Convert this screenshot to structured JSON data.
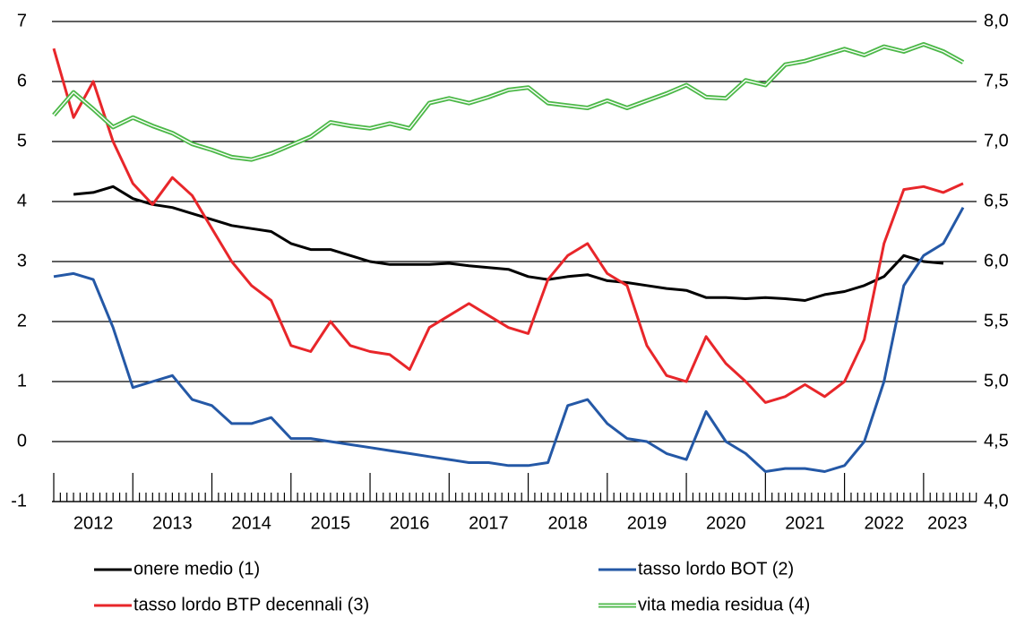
{
  "chart_data": {
    "type": "line",
    "x": [
      2012.0,
      2012.25,
      2012.5,
      2012.75,
      2013.0,
      2013.25,
      2013.5,
      2013.75,
      2014.0,
      2014.25,
      2014.5,
      2014.75,
      2015.0,
      2015.25,
      2015.5,
      2015.75,
      2016.0,
      2016.25,
      2016.5,
      2016.75,
      2017.0,
      2017.25,
      2017.5,
      2017.75,
      2018.0,
      2018.25,
      2018.5,
      2018.75,
      2019.0,
      2019.25,
      2019.5,
      2019.75,
      2020.0,
      2020.25,
      2020.5,
      2020.75,
      2021.0,
      2021.25,
      2021.5,
      2021.75,
      2022.0,
      2022.25,
      2022.5,
      2022.75,
      2023.0,
      2023.25,
      2023.5
    ],
    "xlim": [
      2012.0,
      2023.67
    ],
    "xticks": [
      {
        "value": 2012.5,
        "label": "2012"
      },
      {
        "value": 2013.5,
        "label": "2013"
      },
      {
        "value": 2014.5,
        "label": "2014"
      },
      {
        "value": 2015.5,
        "label": "2015"
      },
      {
        "value": 2016.5,
        "label": "2016"
      },
      {
        "value": 2017.5,
        "label": "2017"
      },
      {
        "value": 2018.5,
        "label": "2018"
      },
      {
        "value": 2019.5,
        "label": "2019"
      },
      {
        "value": 2020.5,
        "label": "2020"
      },
      {
        "value": 2021.5,
        "label": "2021"
      },
      {
        "value": 2022.5,
        "label": "2022"
      },
      {
        "value": 2023.3,
        "label": "2023"
      }
    ],
    "ylim": [
      -1,
      7
    ],
    "yticks": [
      -1,
      0,
      1,
      2,
      3,
      4,
      5,
      6,
      7
    ],
    "y2lim": [
      4,
      8
    ],
    "y2ticks": [
      {
        "value": 4,
        "label": "4,0"
      },
      {
        "value": 4.5,
        "label": "4,5"
      },
      {
        "value": 5,
        "label": "5,0"
      },
      {
        "value": 5.5,
        "label": "5,5"
      },
      {
        "value": 6,
        "label": "6,0"
      },
      {
        "value": 6.5,
        "label": "6,5"
      },
      {
        "value": 7,
        "label": "7,0"
      },
      {
        "value": 7.5,
        "label": "7,5"
      },
      {
        "value": 8,
        "label": "8,0"
      }
    ],
    "grid": true,
    "legend": "bottom",
    "series": [
      {
        "name": "onere medio (1)",
        "color": "#000000",
        "values": [
          null,
          4.12,
          4.15,
          4.25,
          4.05,
          3.95,
          3.9,
          3.8,
          3.7,
          3.6,
          3.55,
          3.5,
          3.3,
          3.2,
          3.2,
          3.1,
          3.0,
          2.95,
          2.95,
          2.95,
          2.97,
          2.93,
          2.9,
          2.87,
          2.75,
          2.7,
          2.75,
          2.78,
          2.68,
          2.65,
          2.6,
          2.55,
          2.52,
          2.4,
          2.4,
          2.38,
          2.4,
          2.38,
          2.35,
          2.45,
          2.5,
          2.6,
          2.75,
          3.1,
          3.0,
          2.97,
          null
        ]
      },
      {
        "name": "tasso lordo BOT (2)",
        "color": "#2458a6",
        "values": [
          2.75,
          2.8,
          2.7,
          1.9,
          0.9,
          1.0,
          1.1,
          0.7,
          0.6,
          0.3,
          0.3,
          0.4,
          0.05,
          0.05,
          0.0,
          -0.05,
          -0.1,
          -0.15,
          -0.2,
          -0.25,
          -0.3,
          -0.35,
          -0.35,
          -0.4,
          -0.4,
          -0.35,
          0.6,
          0.7,
          0.3,
          0.05,
          0.0,
          -0.2,
          -0.3,
          0.5,
          0.0,
          -0.2,
          -0.5,
          -0.45,
          -0.45,
          -0.5,
          -0.4,
          0.0,
          1.0,
          2.6,
          3.1,
          3.3,
          3.9
        ]
      },
      {
        "name": "tasso lordo BTP decennali (3)",
        "color": "#e8262a",
        "values": [
          6.55,
          5.4,
          6.0,
          5.0,
          4.3,
          3.95,
          4.4,
          4.1,
          3.55,
          3.0,
          2.6,
          2.35,
          1.6,
          1.5,
          2.0,
          1.6,
          1.5,
          1.45,
          1.2,
          1.9,
          2.1,
          2.3,
          2.1,
          1.9,
          1.8,
          2.7,
          3.1,
          3.3,
          2.8,
          2.6,
          1.6,
          1.1,
          1.0,
          1.75,
          1.3,
          1.0,
          0.65,
          0.75,
          0.95,
          0.75,
          1.0,
          1.7,
          3.3,
          4.2,
          4.25,
          4.15,
          4.3
        ]
      },
      {
        "name": "vita media residua (4)",
        "color": "#4cb848",
        "axis": "y2",
        "values": [
          7.22,
          7.41,
          7.27,
          7.12,
          7.2,
          7.13,
          7.07,
          6.98,
          6.93,
          6.87,
          6.85,
          6.9,
          6.97,
          7.04,
          7.16,
          7.13,
          7.11,
          7.15,
          7.11,
          7.32,
          7.36,
          7.32,
          7.37,
          7.43,
          7.45,
          7.32,
          7.3,
          7.28,
          7.34,
          7.28,
          7.34,
          7.4,
          7.47,
          7.37,
          7.36,
          7.51,
          7.47,
          7.64,
          7.67,
          7.72,
          7.77,
          7.72,
          7.79,
          7.75,
          7.81,
          7.75,
          7.66
        ]
      }
    ]
  }
}
